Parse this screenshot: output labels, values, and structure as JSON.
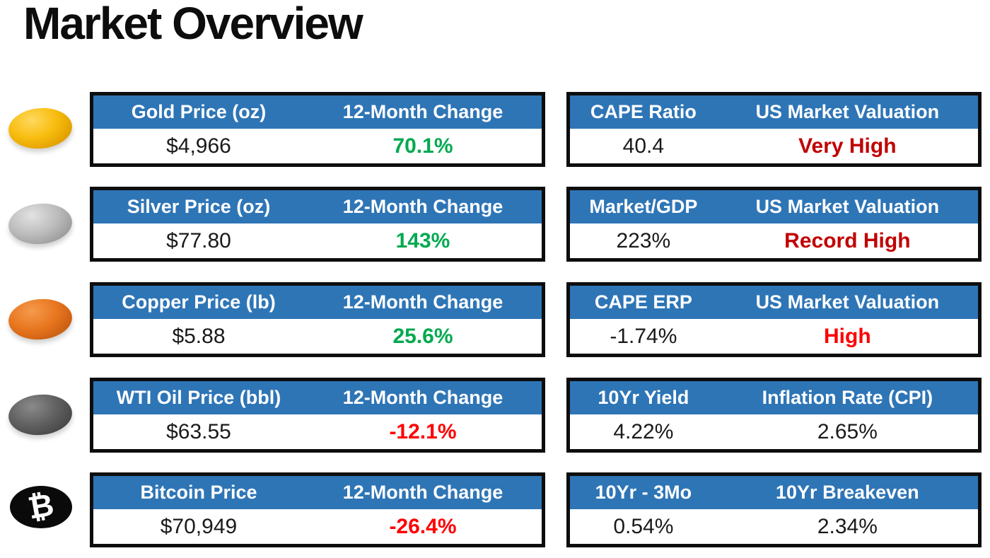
{
  "page": {
    "title": "Market Overview"
  },
  "colors": {
    "header_bg": "#2E75B6",
    "header_text": "#FFFFFF",
    "positive_green": "#00A94F",
    "negative_red": "#FF0000",
    "dark_red": "#C00000",
    "value_black": "#1A1A1A"
  },
  "icons": {
    "bitcoin_glyph": "₿",
    "list": [
      "gold-coin-icon",
      "silver-coin-icon",
      "copper-coin-icon",
      "oil-coin-icon",
      "bitcoin-icon"
    ]
  },
  "commodity_tables": [
    {
      "icon": "gold-coin-icon",
      "headers": [
        "Gold Price (oz)",
        "12-Month Change"
      ],
      "price": "$4,966",
      "change": "70.1%",
      "change_color": "#00A94F"
    },
    {
      "icon": "silver-coin-icon",
      "headers": [
        "Silver Price (oz)",
        "12-Month Change"
      ],
      "price": "$77.80",
      "change": "143%",
      "change_color": "#00A94F"
    },
    {
      "icon": "copper-coin-icon",
      "headers": [
        "Copper Price (lb)",
        "12-Month Change"
      ],
      "price": "$5.88",
      "change": "25.6%",
      "change_color": "#00A94F"
    },
    {
      "icon": "oil-coin-icon",
      "headers": [
        "WTI Oil Price (bbl)",
        "12-Month Change"
      ],
      "price": "$63.55",
      "change": "-12.1%",
      "change_color": "#FF0000"
    },
    {
      "icon": "bitcoin-icon",
      "headers": [
        "Bitcoin Price",
        "12-Month Change"
      ],
      "price": "$70,949",
      "change": "-26.4%",
      "change_color": "#FF0000"
    }
  ],
  "macro_tables": [
    {
      "headers": [
        "CAPE Ratio",
        "US Market Valuation"
      ],
      "value1": "40.4",
      "value2": "Very High",
      "value2_color": "#C00000",
      "value2_bold": true
    },
    {
      "headers": [
        "Market/GDP",
        "US Market Valuation"
      ],
      "value1": "223%",
      "value2": "Record High",
      "value2_color": "#C00000",
      "value2_bold": true
    },
    {
      "headers": [
        "CAPE ERP",
        "US Market Valuation"
      ],
      "value1": "-1.74%",
      "value2": "High",
      "value2_color": "#FF0000",
      "value2_bold": true
    },
    {
      "headers": [
        "10Yr Yield",
        "Inflation Rate (CPI)"
      ],
      "value1": "4.22%",
      "value2": "2.65%",
      "value2_color": "#1A1A1A",
      "value2_bold": false
    },
    {
      "headers": [
        "10Yr - 3Mo",
        "10Yr Breakeven"
      ],
      "value1": "0.54%",
      "value2": "2.34%",
      "value2_color": "#1A1A1A",
      "value2_bold": false
    }
  ]
}
